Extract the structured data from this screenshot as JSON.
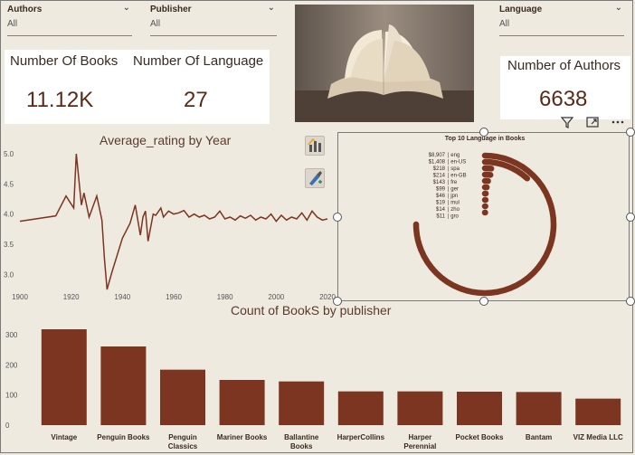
{
  "slicers": {
    "authors": {
      "title": "Authors",
      "value": "All"
    },
    "publisher": {
      "title": "Publisher",
      "value": "All"
    },
    "language": {
      "title": "Language",
      "value": "All"
    }
  },
  "cards": {
    "books_label": "Number Of Books",
    "books_value": "11.12K",
    "languages_label": "Number Of Language",
    "languages_value": "27",
    "authors_label": "Number of Authors",
    "authors_value": "6638"
  },
  "colors": {
    "brown": "#7b3520",
    "bg": "#efeae0"
  },
  "visual_header_icons": [
    "filter-icon",
    "focus-mode-icon",
    "more-options-icon"
  ],
  "side_buttons": [
    "chart-analytics-icon",
    "format-brush-icon"
  ],
  "chart_data": [
    {
      "type": "line",
      "title": "Average_rating by Year",
      "x": [
        1900,
        1914,
        1918,
        1921,
        1922,
        1924,
        1925,
        1927,
        1930,
        1932,
        1933,
        1934,
        1936,
        1940,
        1943,
        1945,
        1947,
        1948,
        1949,
        1950,
        1952,
        1953,
        1955,
        1956,
        1958,
        1960,
        1962,
        1964,
        1966,
        1968,
        1970,
        1972,
        1974,
        1976,
        1978,
        1980,
        1982,
        1984,
        1986,
        1988,
        1990,
        1992,
        1994,
        1996,
        1998,
        2000,
        2002,
        2004,
        2006,
        2008,
        2010,
        2012,
        2014,
        2016,
        2018,
        2020
      ],
      "y": [
        3.88,
        3.97,
        4.3,
        4.1,
        5.0,
        4.15,
        4.35,
        3.95,
        4.3,
        3.9,
        3.25,
        2.75,
        3.05,
        3.6,
        3.85,
        4.15,
        3.65,
        3.95,
        4.05,
        3.55,
        4.0,
        3.98,
        4.1,
        3.95,
        4.05,
        4.0,
        4.02,
        4.06,
        3.95,
        4.0,
        3.95,
        3.98,
        3.92,
        3.95,
        4.05,
        3.92,
        3.95,
        3.9,
        3.97,
        3.93,
        3.98,
        3.9,
        3.95,
        3.92,
        4.0,
        3.88,
        3.98,
        3.9,
        3.95,
        3.92,
        4.02,
        3.9,
        4.05,
        3.95,
        3.9,
        3.92
      ],
      "xlim": [
        1900,
        2020
      ],
      "ylim": [
        2.75,
        5.0
      ],
      "xticks": [
        1900,
        1920,
        1940,
        1960,
        1980,
        2000,
        2020
      ],
      "yticks": [
        3.0,
        3.5,
        4.0,
        4.5,
        5.0
      ],
      "ytick_labels": [
        "3.0",
        "3.5",
        "4.0",
        "4.5",
        "5.0"
      ]
    },
    {
      "type": "radial-bar",
      "title": "Top 10 Language in Books",
      "categories": [
        "eng",
        "en-US",
        "spa",
        "en-GB",
        "fre",
        "ger",
        "jpn",
        "mul",
        "zho",
        "gro"
      ],
      "value_labels": [
        "$8,907",
        "$1,408",
        "$218",
        "$214",
        "$143",
        "$99",
        "$46",
        "$19",
        "$14",
        "$11"
      ],
      "values": [
        8907,
        1408,
        218,
        214,
        143,
        99,
        46,
        19,
        14,
        11
      ]
    },
    {
      "type": "bar",
      "title": "Count of BookS by publisher",
      "categories": [
        "Vintage",
        "Penguin Books",
        "Penguin Classics",
        "Mariner Books",
        "Ballantine Books",
        "HarperCollins",
        "Harper Perennial",
        "Pocket Books",
        "Bantam",
        "VIZ Media LLC"
      ],
      "category_lines": [
        [
          "Vintage"
        ],
        [
          "Penguin Books"
        ],
        [
          "Penguin",
          "Classics"
        ],
        [
          "Mariner Books"
        ],
        [
          "Ballantine",
          "Books"
        ],
        [
          "HarperCollins"
        ],
        [
          "Harper",
          "Perennial"
        ],
        [
          "Pocket Books"
        ],
        [
          "Bantam"
        ],
        [
          "VIZ Media LLC"
        ]
      ],
      "values": [
        318,
        261,
        184,
        150,
        145,
        112,
        112,
        111,
        110,
        88
      ],
      "ylim": [
        0,
        330
      ],
      "yticks": [
        0,
        100,
        200,
        300
      ]
    }
  ]
}
